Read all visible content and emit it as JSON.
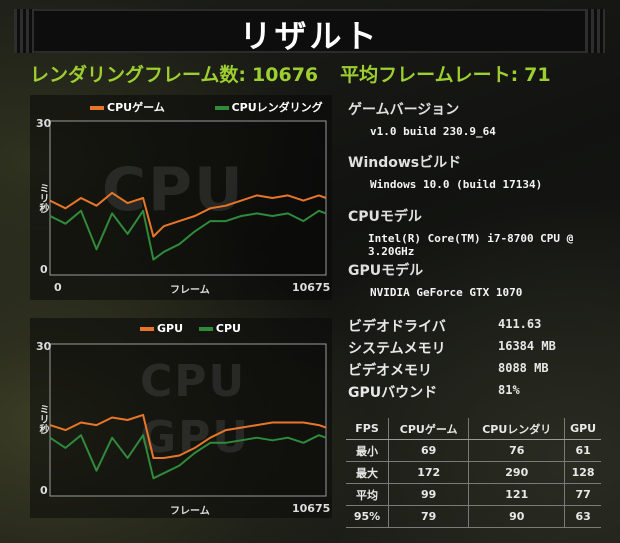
{
  "title": "リザルト",
  "summary": {
    "frames_label": "レンダリングフレーム数:",
    "frames_value": "10676",
    "avg_label": "平均フレームレート:",
    "avg_value": "71"
  },
  "colors": {
    "orange": "#e8762a",
    "green": "#2f8a3b",
    "accent": "#9ccf2f"
  },
  "chart1": {
    "legend": [
      {
        "label": "CPUゲーム",
        "color": "#e8762a"
      },
      {
        "label": "CPUレンダリング",
        "color": "#2f8a3b"
      }
    ],
    "watermark": "CPU",
    "ylabel": "ミリ秒",
    "ytop": "30",
    "ybottom": "0",
    "xlabel": "フレーム",
    "xstart": "0",
    "xend": "10675"
  },
  "chart2": {
    "legend": [
      {
        "label": "GPU",
        "color": "#e8762a"
      },
      {
        "label": "CPU",
        "color": "#2f8a3b"
      }
    ],
    "watermark1": "CPU",
    "watermark2": "GPU",
    "ylabel": "ミリ秒",
    "ytop": "30",
    "ybottom": "0",
    "xlabel": "フレーム",
    "xend": "10675"
  },
  "chart_data": [
    {
      "type": "line",
      "title": "",
      "xlabel": "フレーム",
      "ylabel": "ミリ秒",
      "xlim": [
        0,
        10675
      ],
      "ylim": [
        0,
        30
      ],
      "x": [
        0,
        600,
        1200,
        1800,
        2400,
        3000,
        3600,
        4000,
        4400,
        5000,
        5600,
        6200,
        6800,
        7400,
        8000,
        8600,
        9200,
        9800,
        10400,
        10675
      ],
      "series": [
        {
          "name": "CPUゲーム",
          "values": [
            14.5,
            13.0,
            15.0,
            13.5,
            16.0,
            14.0,
            15.0,
            7.5,
            9.5,
            10.5,
            11.5,
            13.0,
            13.5,
            14.5,
            15.5,
            15.0,
            15.5,
            14.5,
            15.5,
            15.0
          ]
        },
        {
          "name": "CPUレンダリング",
          "values": [
            11.5,
            10.0,
            12.5,
            5.0,
            12.0,
            8.0,
            12.5,
            3.0,
            4.5,
            6.0,
            8.5,
            10.5,
            10.5,
            11.5,
            12.0,
            11.5,
            12.0,
            10.5,
            12.5,
            12.0
          ]
        }
      ]
    },
    {
      "type": "line",
      "title": "",
      "xlabel": "フレーム",
      "ylabel": "ミリ秒",
      "xlim": [
        0,
        10675
      ],
      "ylim": [
        0,
        30
      ],
      "x": [
        0,
        600,
        1200,
        1800,
        2400,
        3000,
        3600,
        4000,
        4400,
        5000,
        5600,
        6200,
        6800,
        7400,
        8000,
        8600,
        9200,
        9800,
        10400,
        10675
      ],
      "series": [
        {
          "name": "GPU",
          "values": [
            14.0,
            13.0,
            14.5,
            14.0,
            15.5,
            15.0,
            16.0,
            7.5,
            7.5,
            8.0,
            9.5,
            11.5,
            13.0,
            13.5,
            14.0,
            14.5,
            14.5,
            14.5,
            14.0,
            13.5
          ]
        },
        {
          "name": "CPU",
          "values": [
            11.5,
            9.5,
            12.0,
            5.0,
            11.5,
            7.5,
            12.0,
            3.5,
            4.5,
            6.0,
            8.5,
            10.5,
            10.5,
            11.0,
            11.5,
            11.0,
            11.5,
            10.5,
            12.0,
            11.5
          ]
        }
      ]
    }
  ],
  "info": {
    "game_version_label": "ゲームバージョン",
    "game_version_value": "v1.0 build 230.9_64",
    "windows_label": "Windowsビルド",
    "windows_value": "Windows 10.0 (build 17134)",
    "cpu_label": "CPUモデル",
    "cpu_value": "Intel(R) Core(TM) i7-8700 CPU @ 3.20GHz",
    "gpu_label": "GPUモデル",
    "gpu_value": "NVIDIA GeForce GTX 1070"
  },
  "kv": [
    {
      "label": "ビデオドライバ",
      "value": "411.63"
    },
    {
      "label": "システムメモリ",
      "value": "16384 MB"
    },
    {
      "label": "ビデオメモリ",
      "value": "8088 MB"
    },
    {
      "label": "GPUバウンド",
      "value": "81%"
    }
  ],
  "fps_table": {
    "headers": [
      "FPS",
      "CPUゲーム",
      "CPUレンダリ",
      "GPU"
    ],
    "rows": [
      [
        "最小",
        "69",
        "76",
        "61"
      ],
      [
        "最大",
        "172",
        "290",
        "128"
      ],
      [
        "平均",
        "99",
        "121",
        "77"
      ],
      [
        "95%",
        "79",
        "90",
        "63"
      ]
    ]
  }
}
